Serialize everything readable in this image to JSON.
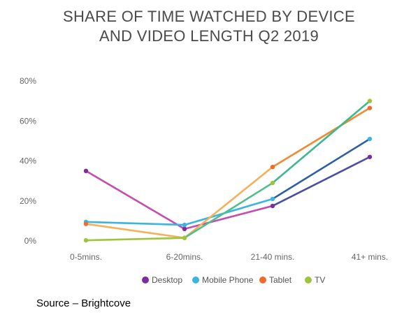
{
  "chart_data": {
    "type": "line",
    "title_lines": [
      "SHARE OF TIME WATCHED BY DEVICE",
      "AND VIDEO LENGTH Q2 2019"
    ],
    "categories": [
      "0-5mins.",
      "6-20mins.",
      "21-40 mins.",
      "41+ mins."
    ],
    "yticks": [
      "0%",
      "20%",
      "40%",
      "60%",
      "80%"
    ],
    "ylim": [
      0,
      80
    ],
    "grid": false,
    "legend_position": "bottom",
    "series": [
      {
        "name": "Desktop",
        "color": "#7b2d9b",
        "values": [
          35,
          6,
          17.5,
          42
        ]
      },
      {
        "name": "Mobile Phone",
        "color": "#3ab4e0",
        "values": [
          9.5,
          8,
          21,
          51
        ]
      },
      {
        "name": "Tablet",
        "color": "#f26b2a",
        "values": [
          8.5,
          1.5,
          37,
          66.5
        ]
      },
      {
        "name": "TV",
        "color": "#9bc53d",
        "values": [
          0.3,
          1.5,
          29,
          70
        ]
      }
    ],
    "segment_colors": [
      [
        "#c44dad",
        "#c44dad",
        "#4a4fa0"
      ],
      [
        "#3ab4e0",
        "#3ab4e0",
        "#2c5fa8"
      ],
      [
        "#f5b05a",
        "#f5b05a",
        "#f28a30"
      ],
      [
        "#9bc53d",
        "#4dbf8a",
        "#3fb88f"
      ]
    ]
  },
  "source": "Source – Brightcove"
}
